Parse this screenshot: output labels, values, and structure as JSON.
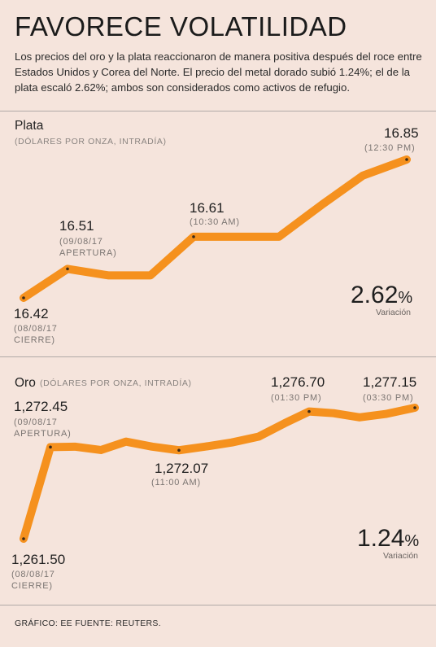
{
  "header": {
    "title": "FAVORECE VOLATILIDAD",
    "intro": "Los precios del oro y la plata reaccionaron de manera positiva después del roce entre Estados Unidos y Corea del Norte. El precio del metal dorado subió 1.24%; el de la plata escaló 2.62%; ambos son considerados como activos de refugio."
  },
  "colors": {
    "line": "#f5911e",
    "background": "#f5e4dc"
  },
  "footer": {
    "text": "GRÁFICO: EE  FUENTE: REUTERS."
  },
  "chart_data": [
    {
      "type": "line",
      "title": "Plata",
      "subtitle": "(DÓLARES POR ONZA, INTRADÍA)",
      "series": [
        {
          "values": [
            16.42,
            16.51,
            16.49,
            16.49,
            16.61,
            16.61,
            16.61,
            16.71,
            16.8,
            16.85
          ]
        }
      ],
      "annotations": [
        {
          "value": "16.42",
          "note": "(08/08/17\nCIERRE)"
        },
        {
          "value": "16.51",
          "note": "(09/08/17\nAPERTURA)"
        },
        {
          "value": "16.61",
          "note": "(10:30 AM)"
        },
        {
          "value": "16.85",
          "note": "(12:30 PM)"
        }
      ],
      "change": {
        "value": "2.62",
        "unit": "%",
        "label": "Variación"
      }
    },
    {
      "type": "line",
      "title": "Oro",
      "subtitle": "(DÓLARES POR ONZA, INTRADÍA)",
      "series": [
        {
          "values": [
            1261.5,
            1272.45,
            1272.5,
            1272.1,
            1273.1,
            1272.5,
            1272.07,
            1272.5,
            1273.0,
            1273.7,
            1275.3,
            1276.7,
            1276.5,
            1276.0,
            1276.4,
            1277.15
          ]
        }
      ],
      "annotations": [
        {
          "value": "1,261.50",
          "note": "(08/08/17\nCIERRE)"
        },
        {
          "value": "1,272.45",
          "note": "(09/08/17\nAPERTURA)"
        },
        {
          "value": "1,272.07",
          "note": "(11:00 AM)"
        },
        {
          "value": "1,276.70",
          "note": "(01:30 PM)"
        },
        {
          "value": "1,277.15",
          "note": "(03:30 PM)"
        }
      ],
      "change": {
        "value": "1.24",
        "unit": "%",
        "label": "Variación"
      }
    }
  ]
}
